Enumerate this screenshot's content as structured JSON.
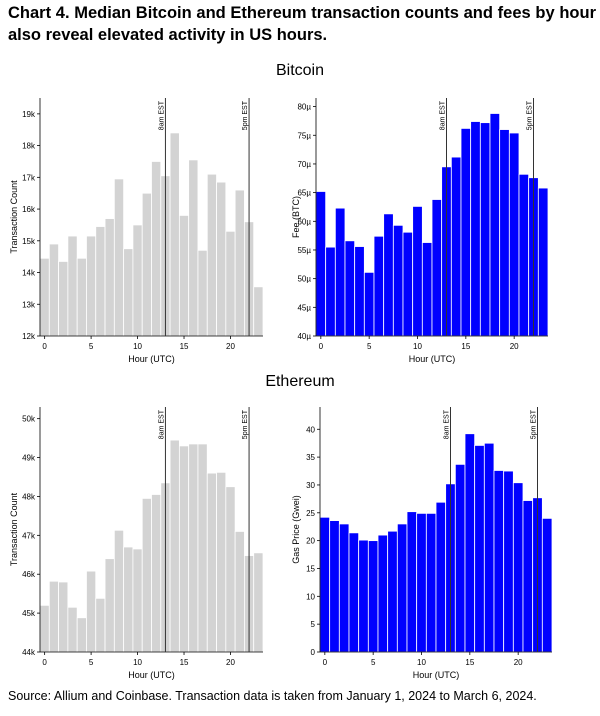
{
  "title": "Chart 4. Median Bitcoin and Ethereum transaction counts and fees by hour also reveal elevated activity in US hours.",
  "sections": [
    "Bitcoin",
    "Ethereum"
  ],
  "source": "Source: Allium and Coinbase. Transaction data is taken from January 1, 2024 to March 6, 2024.",
  "chart_data": [
    {
      "type": "bar",
      "section": "Bitcoin",
      "xlabel": "Hour (UTC)",
      "ylabel": "Transaction Count",
      "x": [
        0,
        1,
        2,
        3,
        4,
        5,
        6,
        7,
        8,
        9,
        10,
        11,
        12,
        13,
        14,
        15,
        16,
        17,
        18,
        19,
        20,
        21,
        22,
        23
      ],
      "values": [
        14450,
        14900,
        14350,
        15150,
        14450,
        15150,
        15450,
        15700,
        16950,
        14750,
        15500,
        16500,
        17500,
        17050,
        18400,
        15800,
        17550,
        14700,
        17100,
        16850,
        15300,
        16600,
        15600,
        13550
      ],
      "ylim": [
        12000,
        19500
      ],
      "yticks": [
        12000,
        13000,
        14000,
        15000,
        16000,
        17000,
        18000,
        19000
      ],
      "ytick_labels": [
        "12k",
        "13k",
        "14k",
        "15k",
        "16k",
        "17k",
        "18k",
        "19k"
      ],
      "xticks": [
        0,
        5,
        10,
        15,
        20
      ],
      "xlim": [
        -0.5,
        23.5
      ],
      "bar_color": "#d3d3d3",
      "vlines": [
        {
          "x": 13,
          "label": "8am EST"
        },
        {
          "x": 22,
          "label": "5pm EST"
        }
      ]
    },
    {
      "type": "bar",
      "section": "Bitcoin",
      "xlabel": "Hour (UTC)",
      "ylabel": "Fee (BTC)",
      "x": [
        0,
        1,
        2,
        3,
        4,
        5,
        6,
        7,
        8,
        9,
        10,
        11,
        12,
        13,
        14,
        15,
        16,
        17,
        18,
        19,
        20,
        21,
        22,
        23
      ],
      "values": [
        65.2,
        55.5,
        62.3,
        56.6,
        55.6,
        51.1,
        57.4,
        61.3,
        59.3,
        58.1,
        62.6,
        56.3,
        63.8,
        69.5,
        71.2,
        76.2,
        77.4,
        77.2,
        78.8,
        76.0,
        75.4,
        68.2,
        67.6,
        65.8
      ],
      "ylim": [
        40,
        81.5
      ],
      "yticks": [
        40,
        45,
        50,
        55,
        60,
        65,
        70,
        75,
        80
      ],
      "ytick_labels": [
        "40µ",
        "45µ",
        "50µ",
        "55µ",
        "60µ",
        "65µ",
        "70µ",
        "75µ",
        "80µ"
      ],
      "xticks": [
        0,
        5,
        10,
        15,
        20
      ],
      "xlim": [
        -0.5,
        23.5
      ],
      "bar_color": "#0000ff",
      "vlines": [
        {
          "x": 13,
          "label": "8am EST"
        },
        {
          "x": 22,
          "label": "5pm EST"
        }
      ]
    },
    {
      "type": "bar",
      "section": "Ethereum",
      "xlabel": "Hour (UTC)",
      "ylabel": "Transaction Count",
      "x": [
        0,
        1,
        2,
        3,
        4,
        5,
        6,
        7,
        8,
        9,
        10,
        11,
        12,
        13,
        14,
        15,
        16,
        17,
        18,
        19,
        20,
        21,
        22,
        23
      ],
      "values": [
        45200,
        45820,
        45800,
        45150,
        44880,
        46080,
        45380,
        46400,
        47130,
        46700,
        46650,
        47950,
        48050,
        48350,
        49450,
        49300,
        49350,
        49350,
        48600,
        48620,
        48250,
        47100,
        46480,
        46550
      ],
      "ylim": [
        44000,
        50300
      ],
      "yticks": [
        44000,
        45000,
        46000,
        47000,
        48000,
        49000,
        50000
      ],
      "ytick_labels": [
        "44k",
        "45k",
        "46k",
        "47k",
        "48k",
        "49k",
        "50k"
      ],
      "xticks": [
        0,
        5,
        10,
        15,
        20
      ],
      "xlim": [
        -0.5,
        23.5
      ],
      "bar_color": "#d3d3d3",
      "vlines": [
        {
          "x": 13,
          "label": "8am EST"
        },
        {
          "x": 22,
          "label": "5pm EST"
        }
      ]
    },
    {
      "type": "bar",
      "section": "Ethereum",
      "xlabel": "Hour (UTC)",
      "ylabel": "Gas Price (Gwei)",
      "x": [
        0,
        1,
        2,
        3,
        4,
        5,
        6,
        7,
        8,
        9,
        10,
        11,
        12,
        13,
        14,
        15,
        16,
        17,
        18,
        19,
        20,
        21,
        22,
        23
      ],
      "values": [
        24.2,
        23.6,
        23.0,
        21.4,
        20.1,
        20.0,
        21.0,
        21.7,
        23.0,
        25.2,
        24.9,
        24.9,
        26.9,
        30.2,
        33.7,
        39.2,
        37.1,
        37.5,
        32.6,
        32.5,
        30.4,
        27.2,
        27.7,
        24.0
      ],
      "ylim": [
        0,
        44
      ],
      "yticks": [
        0,
        5,
        10,
        15,
        20,
        25,
        30,
        35,
        40
      ],
      "ytick_labels": [
        "0",
        "5",
        "10",
        "15",
        "20",
        "25",
        "30",
        "35",
        "40"
      ],
      "xticks": [
        0,
        5,
        10,
        15,
        20
      ],
      "xlim": [
        -0.5,
        23.5
      ],
      "bar_color": "#0000ff",
      "vlines": [
        {
          "x": 13,
          "label": "8am EST"
        },
        {
          "x": 22,
          "label": "5pm EST"
        }
      ]
    }
  ]
}
